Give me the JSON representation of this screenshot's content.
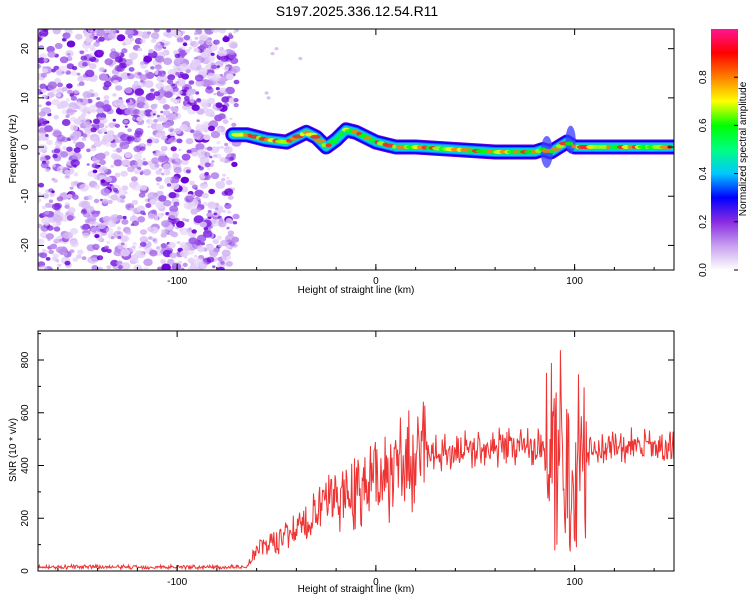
{
  "title": "S197.2025.336.12.54.R11",
  "chart_data": [
    {
      "type": "heatmap",
      "name": "spectrogram",
      "xlabel": "Height of straight line (km)",
      "ylabel": "Frequency (Hz)",
      "xlim": [
        -170,
        150
      ],
      "ylim": [
        -25,
        24
      ],
      "xticks": [
        -100,
        0,
        100
      ],
      "yticks": [
        -20,
        -10,
        0,
        10,
        20
      ],
      "noise_region_x": [
        -170,
        -72
      ],
      "ridge": {
        "x": [
          -72,
          -65,
          -55,
          -45,
          -35,
          -30,
          -25,
          -20,
          -15,
          -10,
          -5,
          0,
          10,
          20,
          40,
          60,
          80,
          84,
          88,
          92,
          96,
          100,
          110,
          130,
          150
        ],
        "y": [
          2.5,
          2.5,
          1.5,
          1,
          3,
          2,
          0,
          1.5,
          3.5,
          3,
          2,
          1,
          0,
          0,
          -0.5,
          -1,
          -1,
          -0.5,
          -1,
          0,
          1,
          0,
          0,
          0,
          0
        ]
      },
      "colorbar": {
        "label": "Normalized spectral amplitude",
        "range": [
          0,
          1
        ],
        "ticks": [
          "0.0",
          "0.2",
          "0.4",
          "0.6",
          "0.8"
        ],
        "colors": [
          "#ffffff",
          "#c8a0f0",
          "#8a2be2",
          "#0000ff",
          "#00c8ff",
          "#00ff80",
          "#00ff00",
          "#ffff00",
          "#ff8000",
          "#ff0000",
          "#ff1493"
        ]
      }
    },
    {
      "type": "line",
      "name": "snr",
      "xlabel": "Height of straight line (km)",
      "ylabel": "SNR (10 * v/v)",
      "xlim": [
        -170,
        150
      ],
      "ylim": [
        0,
        910
      ],
      "xticks": [
        -100,
        0,
        100
      ],
      "yticks": [
        0,
        200,
        400,
        600,
        800
      ],
      "color": "#ee3333",
      "series": [
        {
          "name": "SNR",
          "x": [
            -170,
            -65,
            -60,
            -50,
            -40,
            -30,
            -20,
            -10,
            0,
            10,
            20,
            30,
            40,
            60,
            80,
            88,
            93,
            97,
            100,
            105,
            110,
            130,
            150
          ],
          "y": [
            15,
            15,
            80,
            120,
            150,
            220,
            280,
            310,
            350,
            390,
            420,
            440,
            460,
            470,
            475,
            460,
            520,
            380,
            500,
            460,
            465,
            470,
            470
          ]
        }
      ]
    }
  ]
}
